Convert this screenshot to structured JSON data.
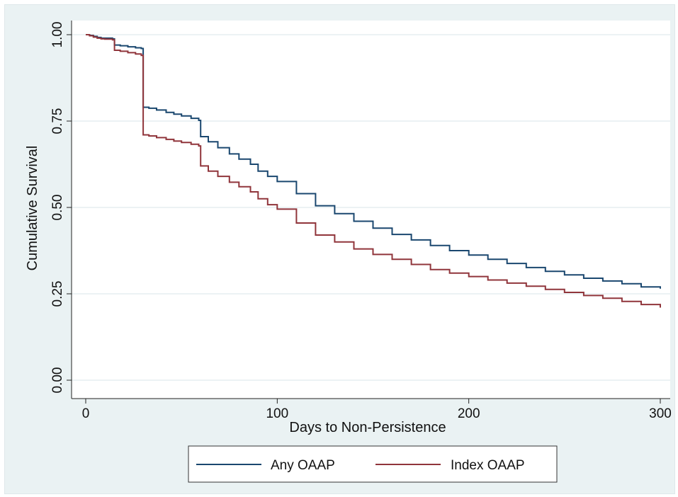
{
  "chart_data": {
    "type": "line",
    "title": "",
    "xlabel": "Days to Non-Persistence",
    "ylabel": "Cumulative Survival",
    "xlim": [
      0,
      300
    ],
    "ylim": [
      0,
      1
    ],
    "x_ticks": [
      0,
      100,
      200,
      300
    ],
    "x_tick_labels": [
      "0",
      "100",
      "200",
      "300"
    ],
    "y_ticks": [
      0,
      0.25,
      0.5,
      0.75,
      1
    ],
    "y_tick_labels": [
      "0.00",
      "0.25",
      "0.50",
      "0.75",
      "1.00"
    ],
    "grid": true,
    "legend_position": "bottom",
    "background_color": "#eaf2f3",
    "plot_background_color": "#ffffff",
    "series": [
      {
        "name": "Any OAAP",
        "color": "#1a476f",
        "x": [
          0,
          2,
          4,
          6,
          8,
          10,
          14,
          15,
          18,
          22,
          26,
          29,
          30,
          33,
          37,
          42,
          46,
          50,
          55,
          59,
          60,
          64,
          69,
          75,
          80,
          86,
          90,
          95,
          100,
          110,
          120,
          130,
          140,
          150,
          160,
          170,
          180,
          190,
          200,
          210,
          220,
          230,
          240,
          250,
          260,
          270,
          280,
          290,
          300
        ],
        "y": [
          1.0,
          0.998,
          0.995,
          0.992,
          0.99,
          0.99,
          0.988,
          0.97,
          0.968,
          0.965,
          0.962,
          0.96,
          0.79,
          0.787,
          0.782,
          0.775,
          0.77,
          0.765,
          0.758,
          0.752,
          0.705,
          0.69,
          0.673,
          0.655,
          0.64,
          0.625,
          0.605,
          0.59,
          0.575,
          0.54,
          0.505,
          0.482,
          0.46,
          0.44,
          0.422,
          0.406,
          0.39,
          0.375,
          0.362,
          0.35,
          0.338,
          0.326,
          0.315,
          0.305,
          0.295,
          0.287,
          0.279,
          0.27,
          0.265
        ]
      },
      {
        "name": "Index OAAP",
        "color": "#90353b",
        "x": [
          0,
          2,
          4,
          6,
          8,
          10,
          14,
          15,
          18,
          22,
          26,
          29,
          30,
          33,
          37,
          42,
          46,
          50,
          55,
          59,
          60,
          64,
          69,
          75,
          80,
          86,
          90,
          95,
          100,
          110,
          120,
          130,
          140,
          150,
          160,
          170,
          180,
          190,
          200,
          210,
          220,
          230,
          240,
          250,
          260,
          270,
          280,
          290,
          300
        ],
        "y": [
          1.0,
          0.997,
          0.993,
          0.99,
          0.988,
          0.987,
          0.985,
          0.955,
          0.952,
          0.948,
          0.944,
          0.94,
          0.71,
          0.707,
          0.702,
          0.697,
          0.692,
          0.688,
          0.683,
          0.678,
          0.62,
          0.605,
          0.59,
          0.573,
          0.56,
          0.545,
          0.525,
          0.508,
          0.495,
          0.455,
          0.42,
          0.4,
          0.38,
          0.364,
          0.35,
          0.335,
          0.32,
          0.31,
          0.3,
          0.29,
          0.281,
          0.272,
          0.263,
          0.254,
          0.245,
          0.237,
          0.228,
          0.219,
          0.21
        ]
      }
    ]
  }
}
